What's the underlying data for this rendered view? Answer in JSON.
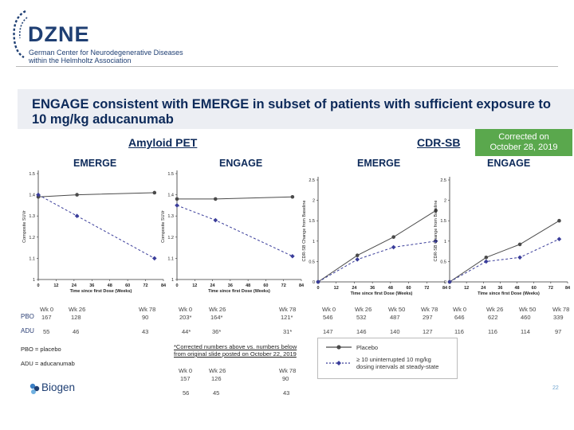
{
  "logo": {
    "name": "DZNE",
    "line1": "German Center for Neurodegenerative Diseases",
    "line2": "within the Helmholtz Association"
  },
  "title": "ENGAGE consistent with EMERGE in subset of patients with sufficient exposure to 10 mg/kg aducanumab",
  "sections": {
    "amyloid": "Amyloid PET",
    "cdr": "CDR-SB"
  },
  "corrected": {
    "line1": "Corrected on",
    "line2": "October 28, 2019"
  },
  "panels": [
    "EMERGE",
    "ENGAGE",
    "EMERGE",
    "ENGAGE"
  ],
  "chart_data": [
    {
      "type": "line",
      "title": "EMERGE",
      "metric": "Amyloid PET",
      "ylabel": "Composite SUVr",
      "xlabel": "Time since first Dose (Weeks)",
      "x_ticks": [
        0,
        12,
        24,
        36,
        48,
        60,
        72,
        84
      ],
      "y_ticks": [
        "1",
        "1.1",
        "1.2",
        "1.3",
        "1.4",
        "1.5"
      ],
      "ylim": [
        1,
        1.5
      ],
      "series": [
        {
          "name": "Placebo",
          "x": [
            0,
            26,
            78
          ],
          "values": [
            1.39,
            1.4,
            1.41
          ]
        },
        {
          "name": "≥ 10 uninterrupted 10 mg/kg dosing intervals at steady-state",
          "x": [
            0,
            26,
            78
          ],
          "values": [
            1.4,
            1.3,
            1.1
          ]
        }
      ]
    },
    {
      "type": "line",
      "title": "ENGAGE",
      "metric": "Amyloid PET",
      "ylabel": "Composite SUVr",
      "xlabel": "Time since first Dose (Weeks)",
      "x_ticks": [
        0,
        12,
        24,
        36,
        48,
        60,
        72,
        84
      ],
      "y_ticks": [
        "1",
        "1.1",
        "1.2",
        "1.3",
        "1.4",
        "1.5"
      ],
      "ylim": [
        1,
        1.5
      ],
      "series": [
        {
          "name": "Placebo",
          "x": [
            0,
            26,
            78
          ],
          "values": [
            1.38,
            1.38,
            1.39
          ]
        },
        {
          "name": "≥ 10 uninterrupted 10 mg/kg dosing intervals at steady-state",
          "x": [
            0,
            26,
            78
          ],
          "values": [
            1.35,
            1.28,
            1.11
          ]
        }
      ]
    },
    {
      "type": "line",
      "title": "EMERGE",
      "metric": "CDR-SB",
      "ylabel": "CDR-SB Change from Baseline",
      "xlabel": "Time since first Dose (Weeks)",
      "x_ticks": [
        0,
        12,
        24,
        36,
        48,
        60,
        72,
        84
      ],
      "y_ticks": [
        "0",
        "0.5",
        "1",
        "1.5",
        "2",
        "2.5"
      ],
      "ylim": [
        0,
        2.5
      ],
      "series": [
        {
          "name": "Placebo",
          "x": [
            0,
            26,
            50,
            78
          ],
          "values": [
            0,
            0.65,
            1.1,
            1.75
          ]
        },
        {
          "name": "≥ 10 uninterrupted 10 mg/kg dosing intervals at steady-state",
          "x": [
            0,
            26,
            50,
            78
          ],
          "values": [
            0,
            0.55,
            0.85,
            1.0
          ]
        }
      ]
    },
    {
      "type": "line",
      "title": "ENGAGE",
      "metric": "CDR-SB",
      "ylabel": "CDR-SB Change from Baseline",
      "xlabel": "Time since first Dose (Weeks)",
      "x_ticks": [
        0,
        12,
        24,
        36,
        48,
        60,
        72,
        84
      ],
      "y_ticks": [
        "0",
        "0.5",
        "1",
        "1.5",
        "2",
        "2.5"
      ],
      "ylim": [
        0,
        2.5
      ],
      "series": [
        {
          "name": "Placebo",
          "x": [
            0,
            26,
            50,
            78
          ],
          "values": [
            0,
            0.6,
            0.92,
            1.5
          ]
        },
        {
          "name": "≥ 10 uninterrupted 10 mg/kg dosing intervals at steady-state",
          "x": [
            0,
            26,
            50,
            78
          ],
          "values": [
            0,
            0.5,
            0.6,
            1.05
          ]
        }
      ]
    }
  ],
  "tables": {
    "emerge_pet": {
      "head": [
        "Wk 0",
        "Wk 26",
        "Wk 78"
      ],
      "pbo": [
        "167",
        "128",
        "90"
      ],
      "adu": [
        "55",
        "46",
        "43"
      ]
    },
    "engage_pet": {
      "head": [
        "Wk 0",
        "Wk 26",
        "Wk 78"
      ],
      "pbo": [
        "203*",
        "164*",
        "121*"
      ],
      "adu": [
        "44*",
        "36*",
        "31*"
      ]
    },
    "emerge_cdr": {
      "head": [
        "Wk 0",
        "Wk 26",
        "Wk 50",
        "Wk 78"
      ],
      "pbo": [
        "546",
        "532",
        "487",
        "297"
      ],
      "adu": [
        "147",
        "146",
        "140",
        "127"
      ]
    },
    "engage_cdr": {
      "head": [
        "Wk 0",
        "Wk 26",
        "Wk 50",
        "Wk 78"
      ],
      "pbo": [
        "646",
        "622",
        "460",
        "339"
      ],
      "adu": [
        "116",
        "116",
        "114",
        "97"
      ]
    },
    "engage_pet_old": {
      "head": [
        "Wk 0",
        "Wk 26",
        "Wk 78"
      ],
      "pbo": [
        "157",
        "126",
        "90"
      ],
      "adu": [
        "56",
        "45",
        "43"
      ]
    }
  },
  "row_labels": {
    "pbo": "PBO",
    "adu": "ADU"
  },
  "footnotes": {
    "pbo": "PBO = placebo",
    "adu": "ADU = aducanumab",
    "corr1": "*Corrected numbers above vs. numbers below",
    "corr2": "from original slide posted on October 22, 2019"
  },
  "legend": {
    "placebo": "Placebo",
    "adu_line1": "≥ 10 uninterrupted 10 mg/kg",
    "adu_line2": "dosing intervals at steady-state"
  },
  "footer": {
    "company": "Biogen",
    "page": "22"
  },
  "colors": {
    "navy": "#0d2a5a",
    "green": "#5aa84d",
    "placebo": "#4a4a4a",
    "adu": "#3a3d9a"
  }
}
